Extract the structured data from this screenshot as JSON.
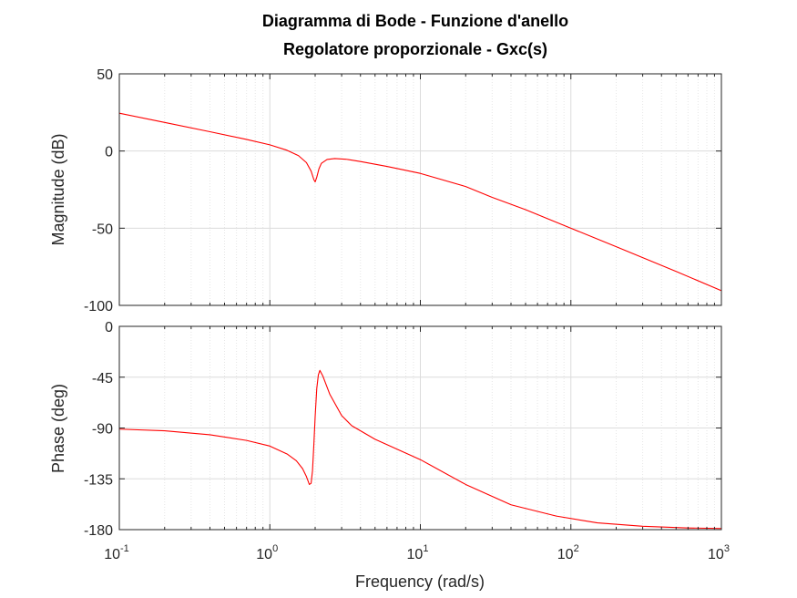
{
  "title_line1": "Diagramma di Bode - Funzione d'anello",
  "title_line2": "Regolatore proporzionale - Gxc(s)",
  "chart_data": {
    "type": "line",
    "xlabel": "Frequency  (rad/s)",
    "xscale": "log",
    "xlim": [
      0.1,
      1000
    ],
    "x_ticks": [
      {
        "base": "10",
        "exp": "-1"
      },
      {
        "base": "10",
        "exp": "0"
      },
      {
        "base": "10",
        "exp": "1"
      },
      {
        "base": "10",
        "exp": "2"
      },
      {
        "base": "10",
        "exp": "3"
      }
    ],
    "grid": true,
    "line_color": "#ff0000",
    "magnitude": {
      "ylabel": "Magnitude (dB)",
      "ylim": [
        -100,
        50
      ],
      "y_ticks": [
        "50",
        "0",
        "-50",
        "-100"
      ],
      "points": [
        [
          0.1,
          24.5
        ],
        [
          0.2,
          18.5
        ],
        [
          0.4,
          12.5
        ],
        [
          0.7,
          7.5
        ],
        [
          1.0,
          4.0
        ],
        [
          1.3,
          0.5
        ],
        [
          1.55,
          -3.0
        ],
        [
          1.75,
          -7.5
        ],
        [
          1.88,
          -13.0
        ],
        [
          1.96,
          -18.5
        ],
        [
          2.0,
          -20.0
        ],
        [
          2.05,
          -17.0
        ],
        [
          2.12,
          -11.5
        ],
        [
          2.2,
          -8.0
        ],
        [
          2.4,
          -5.5
        ],
        [
          2.7,
          -4.9
        ],
        [
          3.2,
          -5.3
        ],
        [
          4.0,
          -6.8
        ],
        [
          6.0,
          -10.0
        ],
        [
          10.0,
          -14.5
        ],
        [
          20.0,
          -23.0
        ],
        [
          30.0,
          -30.0
        ],
        [
          50.0,
          -38.0
        ],
        [
          100.0,
          -50.0
        ],
        [
          200.0,
          -62.0
        ],
        [
          500.0,
          -78.0
        ],
        [
          1000.0,
          -90.5
        ]
      ]
    },
    "phase": {
      "ylabel": "Phase (deg)",
      "ylim": [
        -180,
        0
      ],
      "y_ticks": [
        "0",
        "-45",
        "-90",
        "-135",
        "-180"
      ],
      "points": [
        [
          0.1,
          -91
        ],
        [
          0.2,
          -92.5
        ],
        [
          0.4,
          -96
        ],
        [
          0.7,
          -101
        ],
        [
          1.0,
          -106
        ],
        [
          1.3,
          -113
        ],
        [
          1.5,
          -119
        ],
        [
          1.65,
          -126
        ],
        [
          1.75,
          -133
        ],
        [
          1.83,
          -140
        ],
        [
          1.88,
          -139
        ],
        [
          1.92,
          -128
        ],
        [
          1.96,
          -105
        ],
        [
          2.0,
          -80
        ],
        [
          2.05,
          -55
        ],
        [
          2.1,
          -43
        ],
        [
          2.15,
          -39
        ],
        [
          2.25,
          -44
        ],
        [
          2.5,
          -60
        ],
        [
          3.0,
          -79
        ],
        [
          3.5,
          -88
        ],
        [
          5.0,
          -100
        ],
        [
          10.0,
          -118
        ],
        [
          20.0,
          -140
        ],
        [
          40.0,
          -158
        ],
        [
          80.0,
          -168
        ],
        [
          150.0,
          -174
        ],
        [
          300.0,
          -177
        ],
        [
          600.0,
          -178.5
        ],
        [
          1000.0,
          -179
        ]
      ]
    }
  }
}
